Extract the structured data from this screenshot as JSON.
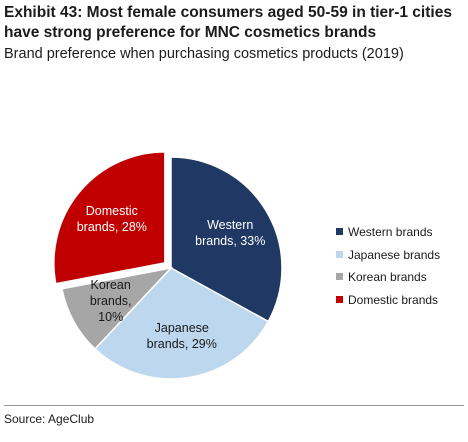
{
  "header": {
    "title": "Exhibit 43: Most female consumers aged 50-59 in tier-1 cities have strong preference for MNC cosmetics brands",
    "subtitle": "Brand preference when purchasing cosmetics products (2019)"
  },
  "footer": {
    "source": "Source: AgeClub"
  },
  "chart_data": {
    "type": "pie",
    "title": "Exhibit 43: Most female consumers aged 50-59 in tier-1 cities have strong preference for MNC cosmetics brands",
    "subtitle": "Brand preference when purchasing cosmetics products (2019)",
    "unit": "%",
    "legend_placement": "right",
    "slices": [
      {
        "name": "Western brands",
        "value": 33,
        "color": "#1f3864",
        "label_lines": [
          "Western",
          "brands, 33%"
        ],
        "label_color": "#ffffff",
        "exploded": false
      },
      {
        "name": "Japanese brands",
        "value": 29,
        "color": "#bdd7ee",
        "label_lines": [
          "Japanese",
          "brands, 29%"
        ],
        "label_color": "#1a1a1a",
        "exploded": false
      },
      {
        "name": "Korean brands",
        "value": 10,
        "color": "#a6a6a6",
        "label_lines": [
          "Korean",
          "brands,",
          "10%"
        ],
        "label_color": "#1a1a1a",
        "exploded": false
      },
      {
        "name": "Domestic brands",
        "value": 28,
        "color": "#c00000",
        "label_lines": [
          "Domestic",
          "brands, 28%"
        ],
        "label_color": "#ffffff",
        "exploded": true
      }
    ]
  }
}
